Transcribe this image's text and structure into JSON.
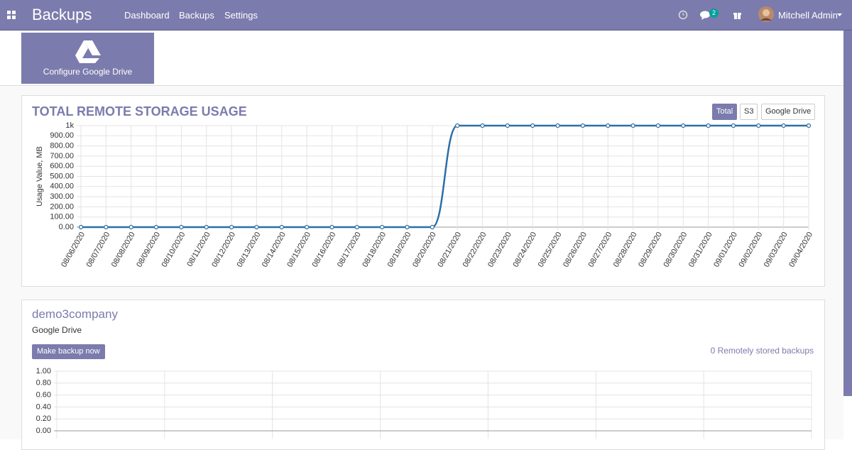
{
  "navbar": {
    "brand": "Backups",
    "menu": [
      "Dashboard",
      "Backups",
      "Settings"
    ],
    "chat_badge": "2",
    "user": "Mitchell Admin"
  },
  "configure_tile": {
    "label": "Configure Google Drive"
  },
  "storage_card": {
    "tabs": [
      "Total",
      "S3",
      "Google Drive"
    ]
  },
  "backup_card": {
    "name": "demo3company",
    "storage": "Google Drive",
    "button": "Make backup now",
    "status": "0 Remotely stored backups"
  },
  "chart_data": [
    {
      "type": "line",
      "title": "TOTAL REMOTE STORAGE USAGE",
      "y_label": "Usage Value, MB",
      "categories": [
        "08/06/2020",
        "08/07/2020",
        "08/08/2020",
        "08/09/2020",
        "08/10/2020",
        "08/11/2020",
        "08/12/2020",
        "08/13/2020",
        "08/14/2020",
        "08/15/2020",
        "08/16/2020",
        "08/17/2020",
        "08/18/2020",
        "08/19/2020",
        "08/20/2020",
        "08/21/2020",
        "08/22/2020",
        "08/23/2020",
        "08/24/2020",
        "08/25/2020",
        "08/26/2020",
        "08/27/2020",
        "08/28/2020",
        "08/29/2020",
        "08/30/2020",
        "08/31/2020",
        "09/01/2020",
        "09/02/2020",
        "09/03/2020",
        "09/04/2020"
      ],
      "series": [
        {
          "name": "Total",
          "color": "#2c6fa8",
          "values": [
            0,
            0,
            0,
            0,
            0,
            0,
            0,
            0,
            0,
            0,
            0,
            0,
            0,
            0,
            0,
            1000,
            1000,
            1000,
            1000,
            1000,
            1000,
            1000,
            1000,
            1000,
            1000,
            1000,
            1000,
            1000,
            1000,
            1000
          ]
        }
      ],
      "ylim": [
        0,
        1000
      ],
      "yticks": [
        {
          "value": 0,
          "label": "0.00"
        },
        {
          "value": 100,
          "label": "100.00"
        },
        {
          "value": 200,
          "label": "200.00"
        },
        {
          "value": 300,
          "label": "300.00"
        },
        {
          "value": 400,
          "label": "400.00"
        },
        {
          "value": 500,
          "label": "500.00"
        },
        {
          "value": 600,
          "label": "600.00"
        },
        {
          "value": 700,
          "label": "700.00"
        },
        {
          "value": 800,
          "label": "800.00"
        },
        {
          "value": 900,
          "label": "900.00"
        },
        {
          "value": 1000,
          "label": "1k"
        }
      ],
      "grid": true
    },
    {
      "type": "line",
      "ylim": [
        0,
        1
      ],
      "yticks": [
        {
          "value": 0,
          "label": "0.00"
        },
        {
          "value": 0.2,
          "label": "0.20"
        },
        {
          "value": 0.4,
          "label": "0.40"
        },
        {
          "value": 0.6,
          "label": "0.60"
        },
        {
          "value": 0.8,
          "label": "0.80"
        },
        {
          "value": 1,
          "label": "1.00"
        }
      ],
      "grid": true
    }
  ]
}
